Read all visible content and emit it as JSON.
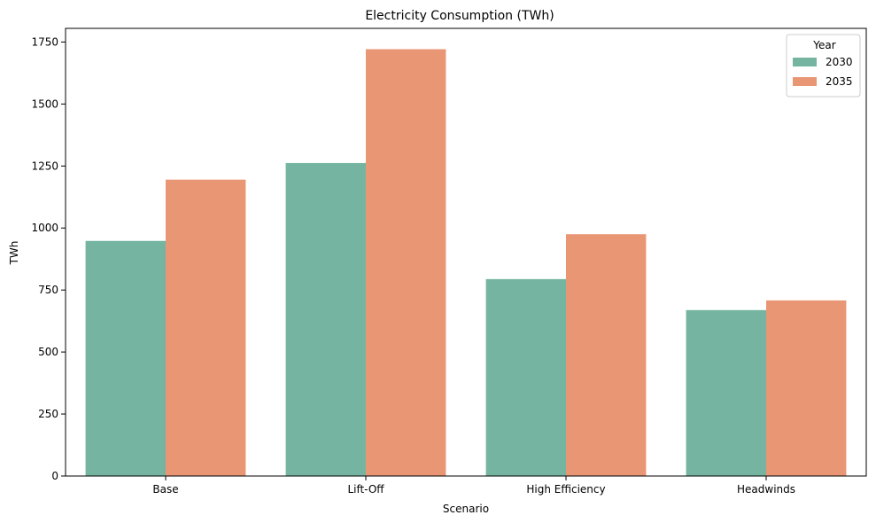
{
  "chart_data": {
    "type": "bar",
    "title": "Electricity Consumption (TWh)",
    "xlabel": "Scenario",
    "ylabel": "TWh",
    "categories": [
      "Base",
      "Lift-Off",
      "High Efficiency",
      "Headwinds"
    ],
    "series": [
      {
        "name": "2030",
        "color": "#74b4a0",
        "values": [
          948,
          1262,
          794,
          669
        ]
      },
      {
        "name": "2035",
        "color": "#e99674",
        "values": [
          1195,
          1721,
          975,
          708
        ]
      }
    ],
    "ylim": [
      0,
      1805
    ],
    "yticks": [
      0,
      250,
      500,
      750,
      1000,
      1250,
      1500,
      1750
    ],
    "legend": {
      "title": "Year",
      "position": "top-right"
    },
    "grid": false
  }
}
